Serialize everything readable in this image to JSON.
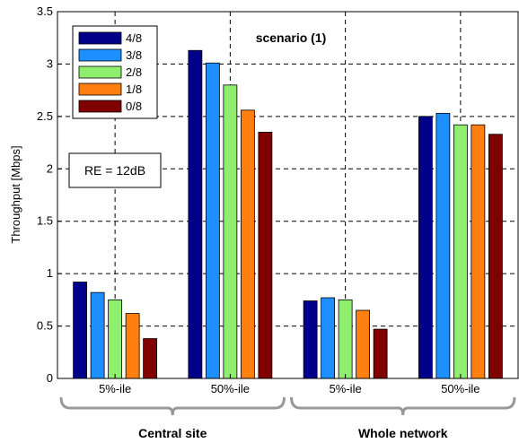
{
  "chart_data": {
    "type": "bar",
    "title": "scenario (1)",
    "ylabel": "Throughput [Mbps]",
    "xlabel": "",
    "ylim": [
      0,
      3.5
    ],
    "yticks": [
      "0",
      "0.5",
      "1",
      "1.5",
      "2",
      "2.5",
      "3",
      "3.5"
    ],
    "categories": [
      "5%-ile",
      "50%-ile",
      "5%-ile",
      "50%-ile"
    ],
    "groups": [
      {
        "label": "Central site",
        "categories": [
          0,
          1
        ]
      },
      {
        "label": "Whole network",
        "categories": [
          2,
          3
        ]
      }
    ],
    "series": [
      {
        "name": "4/8",
        "color": "#00008b",
        "values": [
          0.92,
          3.13,
          0.74,
          2.5
        ]
      },
      {
        "name": "3/8",
        "color": "#1e8fff",
        "values": [
          0.82,
          3.01,
          0.77,
          2.53
        ]
      },
      {
        "name": "2/8",
        "color": "#90ee6f",
        "values": [
          0.75,
          2.8,
          0.75,
          2.42
        ]
      },
      {
        "name": "1/8",
        "color": "#ff7f10",
        "values": [
          0.62,
          2.56,
          0.65,
          2.42
        ]
      },
      {
        "name": "0/8",
        "color": "#800000",
        "values": [
          0.38,
          2.35,
          0.47,
          2.33
        ]
      }
    ],
    "annotation": "RE = 12dB",
    "grid": true,
    "legend_position": "top-left"
  }
}
